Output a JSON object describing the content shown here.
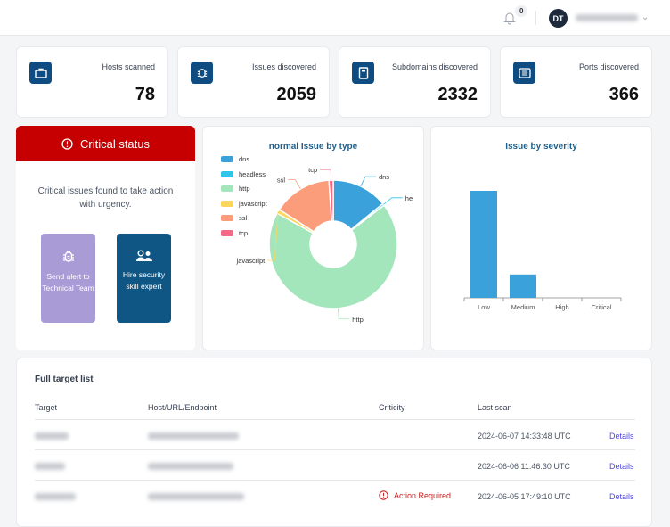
{
  "header": {
    "notification_count": "0",
    "avatar_initials": "DT"
  },
  "stats": [
    {
      "label": "Hosts scanned",
      "value": "78",
      "icon": "briefcase-icon"
    },
    {
      "label": "Issues discovered",
      "value": "2059",
      "icon": "bug-icon"
    },
    {
      "label": "Subdomains discovered",
      "value": "2332",
      "icon": "book-icon"
    },
    {
      "label": "Ports discovered",
      "value": "366",
      "icon": "list-icon"
    }
  ],
  "critical": {
    "title": "Critical status",
    "message": "Critical issues found to take action with urgency.",
    "alert_button": "Send alert to Technical Team",
    "hire_button": "Hire security skill expert",
    "color": "#c60000"
  },
  "chart_data": [
    {
      "type": "pie",
      "title": "normal Issue by type",
      "legend_position": "top-left",
      "categories": [
        "dns",
        "headless",
        "http",
        "javascript",
        "ssl",
        "tcp"
      ],
      "slice_labels": [
        "dns",
        "he",
        "http",
        "javascript",
        "ssl",
        "tcp"
      ],
      "values": [
        290,
        10,
        1410,
        22,
        305,
        22
      ],
      "colors": [
        "#3ba1db",
        "#2ec5e8",
        "#a3e6bb",
        "#fcd55a",
        "#fb9c7a",
        "#f46a88"
      ]
    },
    {
      "type": "bar",
      "title": "Issue by severity",
      "categories": [
        "Low",
        "Medium",
        "High",
        "Critical"
      ],
      "values": [
        1690,
        369,
        0,
        0
      ],
      "color": "#3ba1db",
      "grid": false
    }
  ],
  "table": {
    "title": "Full target list",
    "columns": [
      "Target",
      "Host/URL/Endpoint",
      "Criticity",
      "Last scan"
    ],
    "rows": [
      {
        "criticity": "",
        "last_scan": "2024-06-07 14:33:48 UTC",
        "action": "Details"
      },
      {
        "criticity": "",
        "last_scan": "2024-06-06 11:46:30 UTC",
        "action": "Details"
      },
      {
        "criticity": "Action Required",
        "last_scan": "2024-06-05 17:49:10 UTC",
        "action": "Details"
      }
    ]
  }
}
